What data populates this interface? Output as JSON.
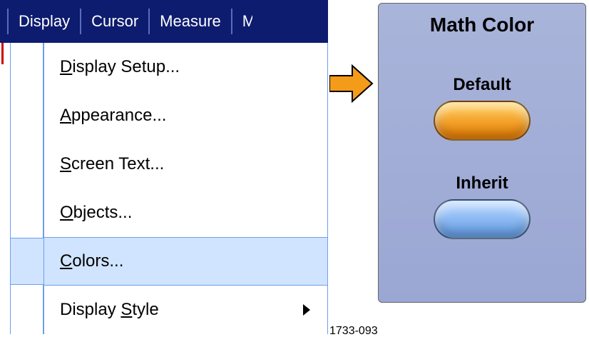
{
  "menubar": {
    "bg": "#0d1c6f",
    "items": [
      "Display",
      "Cursor",
      "Measure",
      "M"
    ]
  },
  "dropdown": {
    "highlight_bg": "#d0e4ff",
    "border_color": "#6d9fe8",
    "items": [
      {
        "label": "Display Setup...",
        "mnemonic_index": 0,
        "highlighted": false,
        "has_submenu": false
      },
      {
        "label": "Appearance...",
        "mnemonic_index": 0,
        "highlighted": false,
        "has_submenu": false
      },
      {
        "label": "Screen Text...",
        "mnemonic_index": 0,
        "highlighted": false,
        "has_submenu": false
      },
      {
        "label": "Objects...",
        "mnemonic_index": 0,
        "highlighted": false,
        "has_submenu": false
      },
      {
        "label": "Colors...",
        "mnemonic_index": 0,
        "highlighted": true,
        "has_submenu": false
      },
      {
        "label": "Display Style",
        "mnemonic_index": 8,
        "highlighted": false,
        "has_submenu": true
      }
    ]
  },
  "arrow": {
    "fill": "#f59b1a",
    "stroke": "#000000"
  },
  "panel": {
    "title": "Math Color",
    "bg_top": "#a9b4da",
    "bg_bottom": "#9aa7d3",
    "options": [
      {
        "label": "Default",
        "color_top": "#ffcf5a",
        "color_bottom": "#e87a00"
      },
      {
        "label": "Inherit",
        "color_top": "#b9d7ff",
        "color_bottom": "#5f9be6"
      }
    ]
  },
  "figure_id": "1733-093"
}
